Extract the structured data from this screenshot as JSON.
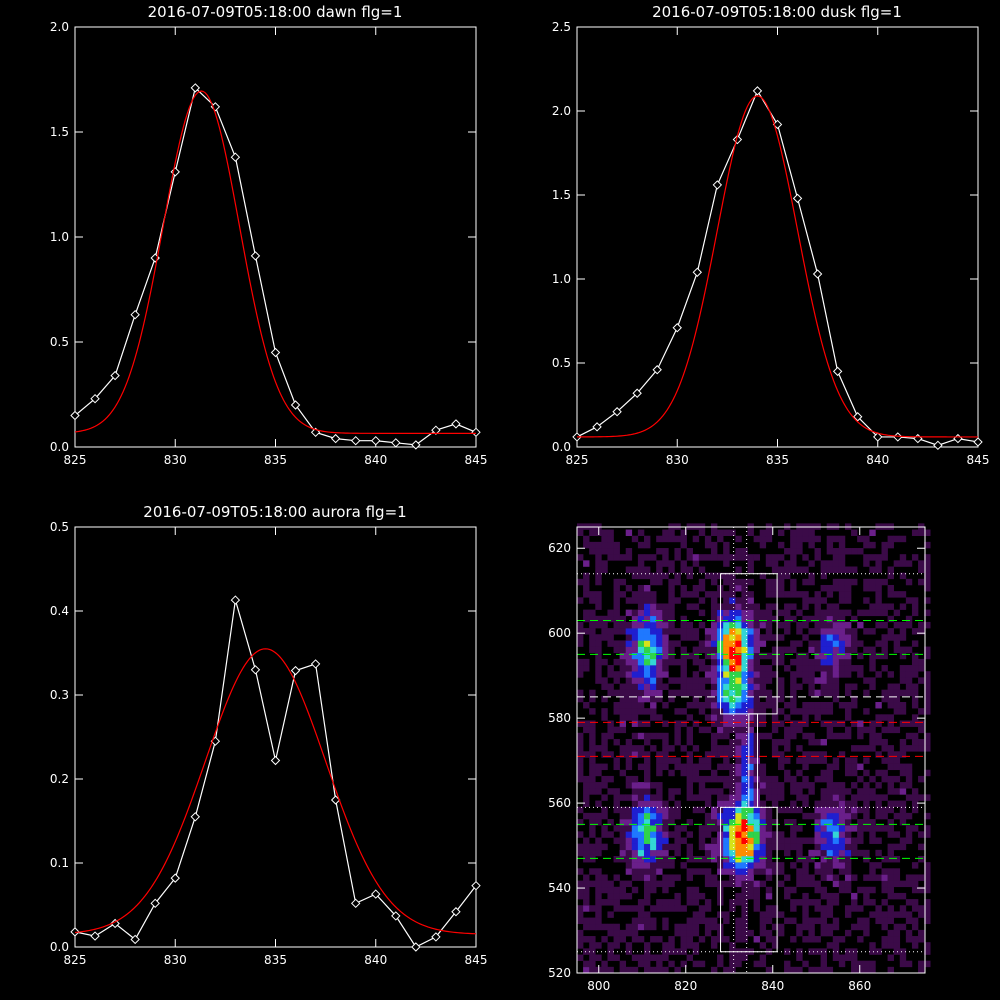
{
  "chart_data": [
    {
      "type": "line",
      "title": "2016-07-09T05:18:00 dawn flg=1",
      "xlim": [
        825,
        845
      ],
      "ylim": [
        0,
        2.0
      ],
      "xticks": [
        "825",
        "830",
        "835",
        "840",
        "845"
      ],
      "yticks": [
        "0.0",
        "0.5",
        "1.0",
        "1.5",
        "2.0"
      ],
      "series": [
        {
          "color": "#ffffff",
          "marker": "diamond",
          "x": [
            825,
            826,
            827,
            828,
            829,
            830,
            831,
            832,
            833,
            834,
            835,
            836,
            837,
            838,
            839,
            840,
            841,
            842,
            843,
            844,
            845
          ],
          "y": [
            0.15,
            0.23,
            0.34,
            0.63,
            0.9,
            1.31,
            1.71,
            1.62,
            1.38,
            0.91,
            0.45,
            0.2,
            0.07,
            0.04,
            0.03,
            0.03,
            0.02,
            0.01,
            0.08,
            0.11,
            0.07
          ]
        },
        {
          "color": "#ff0000",
          "marker": "none",
          "model": "gaussian",
          "center": 831.3,
          "sigma": 1.9,
          "amplitude": 1.63,
          "baseline": 0.065
        }
      ]
    },
    {
      "type": "line",
      "title": "2016-07-09T05:18:00 dusk flg=1",
      "xlim": [
        825,
        845
      ],
      "ylim": [
        0,
        2.5
      ],
      "xticks": [
        "825",
        "830",
        "835",
        "840",
        "845"
      ],
      "yticks": [
        "0.0",
        "0.5",
        "1.0",
        "1.5",
        "2.0",
        "2.5"
      ],
      "series": [
        {
          "color": "#ffffff",
          "marker": "diamond",
          "x": [
            825,
            826,
            827,
            828,
            829,
            830,
            831,
            832,
            833,
            834,
            835,
            836,
            837,
            838,
            839,
            840,
            841,
            842,
            843,
            844,
            845
          ],
          "y": [
            0.06,
            0.12,
            0.21,
            0.32,
            0.46,
            0.71,
            1.04,
            1.56,
            1.83,
            2.12,
            1.92,
            1.48,
            1.03,
            0.45,
            0.18,
            0.06,
            0.06,
            0.05,
            0.01,
            0.05,
            0.03
          ]
        },
        {
          "color": "#ff0000",
          "marker": "none",
          "model": "gaussian",
          "center": 834.0,
          "sigma": 2.0,
          "amplitude": 2.03,
          "baseline": 0.06
        }
      ]
    },
    {
      "type": "line",
      "title": "2016-07-09T05:18:00 aurora flg=1",
      "xlim": [
        825,
        845
      ],
      "ylim": [
        0,
        0.5
      ],
      "xticks": [
        "825",
        "830",
        "835",
        "840",
        "845"
      ],
      "yticks": [
        "0.0",
        "0.1",
        "0.2",
        "0.3",
        "0.4",
        "0.5"
      ],
      "series": [
        {
          "color": "#ffffff",
          "marker": "diamond",
          "x": [
            825,
            826,
            827,
            828,
            829,
            830,
            831,
            832,
            833,
            834,
            835,
            836,
            837,
            838,
            839,
            840,
            841,
            842,
            843,
            844,
            845
          ],
          "y": [
            0.018,
            0.013,
            0.028,
            0.009,
            0.052,
            0.082,
            0.155,
            0.245,
            0.413,
            0.33,
            0.222,
            0.329,
            0.337,
            0.175,
            0.052,
            0.063,
            0.037,
            0.0,
            0.012,
            0.042,
            0.073
          ]
        },
        {
          "color": "#ff0000",
          "marker": "none",
          "model": "gaussian",
          "center": 834.5,
          "sigma": 3.0,
          "amplitude": 0.34,
          "baseline": 0.015
        }
      ]
    },
    {
      "type": "heatmap",
      "title": "",
      "xlim": [
        795,
        875
      ],
      "ylim": [
        520,
        625
      ],
      "xticks": [
        "800",
        "820",
        "840",
        "860"
      ],
      "yticks": [
        "520",
        "540",
        "560",
        "580",
        "600",
        "620"
      ],
      "colormap": [
        "#000000",
        "#3b0a48",
        "#6a1f8a",
        "#1f1fd0",
        "#1f78ff",
        "#33d6d6",
        "#2fd34a",
        "#d6e21a",
        "#ff8c00",
        "#ff0000"
      ],
      "blobs": [
        {
          "x": 811,
          "y": 596,
          "sx": 2.5,
          "sy": 6,
          "amp": 0.55
        },
        {
          "x": 811,
          "y": 553,
          "sx": 2.5,
          "sy": 5,
          "amp": 0.55
        },
        {
          "x": 831,
          "y": 597,
          "sx": 2.5,
          "sy": 5,
          "amp": 0.95
        },
        {
          "x": 831,
          "y": 586,
          "sx": 2.5,
          "sy": 4,
          "amp": 0.6
        },
        {
          "x": 833,
          "y": 552,
          "sx": 2.8,
          "sy": 5,
          "amp": 1.0
        },
        {
          "x": 834,
          "y": 568,
          "sx": 1.5,
          "sy": 7,
          "amp": 0.35
        },
        {
          "x": 854,
          "y": 597,
          "sx": 2.5,
          "sy": 5,
          "amp": 0.3
        },
        {
          "x": 854,
          "y": 553,
          "sx": 2.5,
          "sy": 5,
          "amp": 0.4
        }
      ],
      "boxes": [
        {
          "x0": 828,
          "x1": 841,
          "y0": 581,
          "y1": 614,
          "color": "#ffffff"
        },
        {
          "x0": 828,
          "x1": 841,
          "y0": 525,
          "y1": 559,
          "color": "#ffffff"
        },
        {
          "x0": 834.5,
          "x1": 836.5,
          "y0": 559,
          "y1": 581,
          "color": "#ffffff"
        }
      ],
      "hlines": [
        {
          "y": 614,
          "color": "#ffffff",
          "style": "dotted"
        },
        {
          "y": 603,
          "color": "#00ff00",
          "style": "dashed"
        },
        {
          "y": 595,
          "color": "#00ff00",
          "style": "dashed"
        },
        {
          "y": 585,
          "color": "#ffffff",
          "style": "dashed"
        },
        {
          "y": 579,
          "color": "#ff0000",
          "style": "dashed"
        },
        {
          "y": 571,
          "color": "#ff0000",
          "style": "dashed"
        },
        {
          "y": 559,
          "color": "#ffffff",
          "style": "dotted"
        },
        {
          "y": 555,
          "color": "#00ff00",
          "style": "dashed"
        },
        {
          "y": 547,
          "color": "#00ff00",
          "style": "dashed"
        },
        {
          "y": 525,
          "color": "#ffffff",
          "style": "dotted"
        }
      ],
      "vlines": [
        {
          "x": 831,
          "color": "#ffffff",
          "style": "dotted"
        },
        {
          "x": 834,
          "color": "#ffffff",
          "style": "dotted"
        }
      ]
    }
  ]
}
